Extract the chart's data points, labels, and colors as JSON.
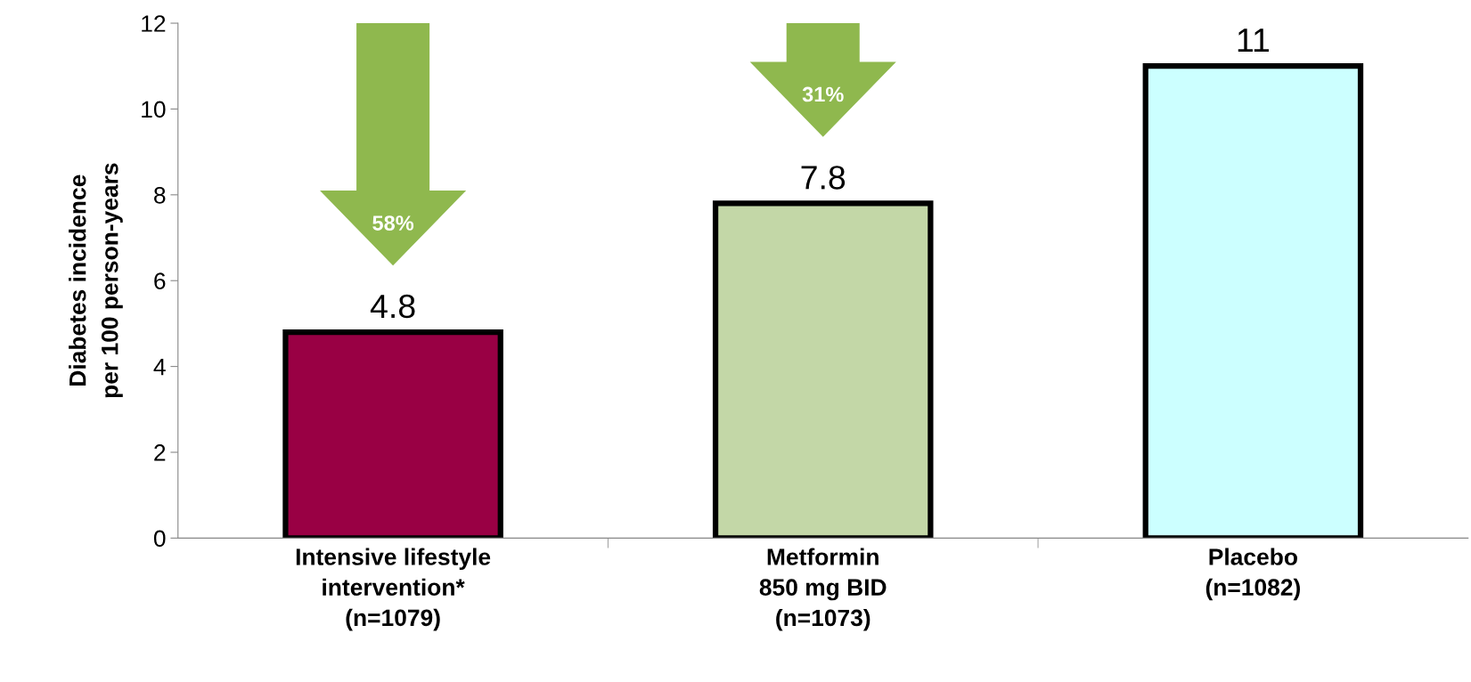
{
  "chart_data": {
    "type": "bar",
    "ylabel": "Diabetes incidence\nper 100 person-years",
    "categories": [
      "Intensive lifestyle\nintervention*\n(n=1079)",
      "Metformin\n850 mg BID\n(n=1073)",
      "Placebo\n(n=1082)"
    ],
    "values": [
      4.8,
      7.8,
      11
    ],
    "colors": [
      "#990044",
      "#c3d7a7",
      "#ccffff"
    ],
    "data_labels": true,
    "ylim": [
      0,
      12
    ],
    "yticks": [
      0,
      2,
      4,
      6,
      8,
      10,
      12
    ],
    "grid": false,
    "legend": false,
    "annotations": [
      "58%",
      "31%"
    ]
  }
}
